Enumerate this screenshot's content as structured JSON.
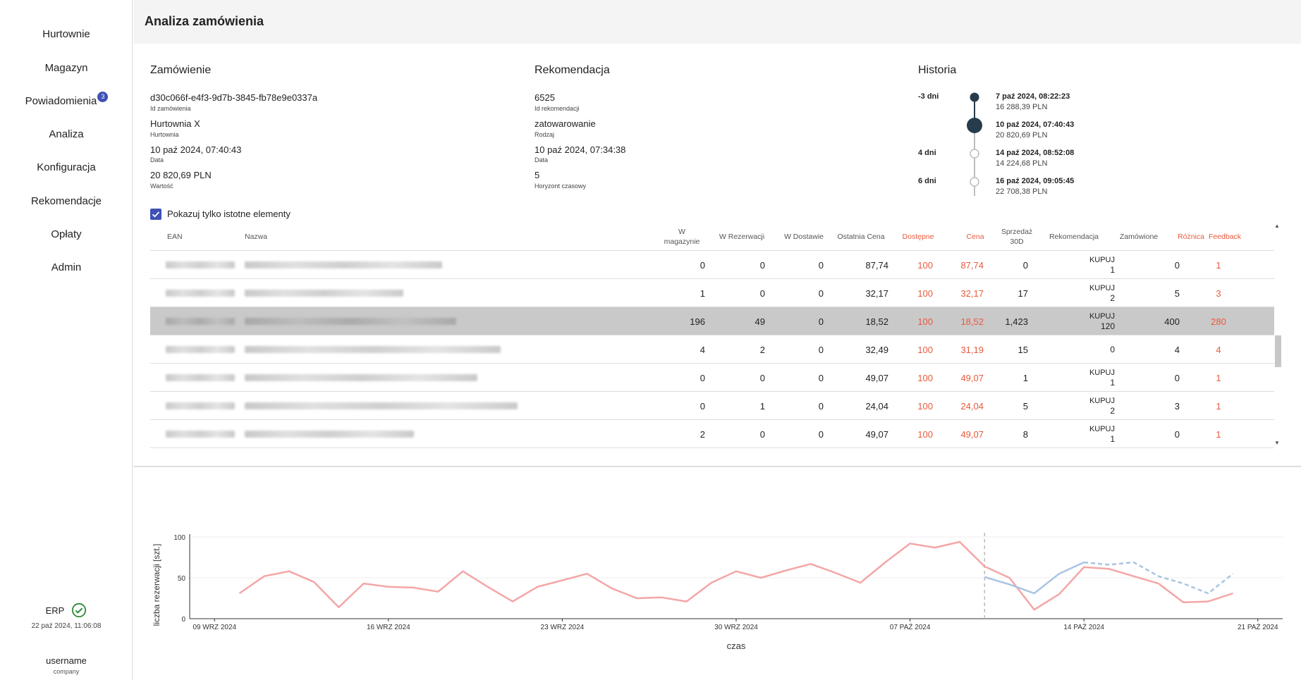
{
  "sidebar": {
    "items": [
      {
        "label": "Hurtownie"
      },
      {
        "label": "Magazyn"
      },
      {
        "label": "Powiadomienia",
        "badge": "3"
      },
      {
        "label": "Analiza"
      },
      {
        "label": "Konfiguracja"
      },
      {
        "label": "Rekomendacje"
      },
      {
        "label": "Opłaty"
      },
      {
        "label": "Admin"
      }
    ],
    "erp_label": "ERP",
    "erp_status_icon": "check-circle-icon",
    "erp_date": "22 paź 2024, 11:06:08",
    "username": "username",
    "company": "company"
  },
  "header": {
    "title": "Analiza zamówienia"
  },
  "order": {
    "title": "Zamówienie",
    "id_value": "d30c066f-e4f3-9d7b-3845-fb78e9e0337a",
    "id_label": "Id zamówienia",
    "wholesaler_value": "Hurtownia X",
    "wholesaler_label": "Hurtownia",
    "date_value": "10 paź 2024, 07:40:43",
    "date_label": "Data",
    "value_value": "20 820,69 PLN",
    "value_label": "Wartość"
  },
  "recommendation": {
    "title": "Rekomendacja",
    "id_value": "6525",
    "id_label": "Id rekomendacji",
    "type_value": "zatowarowanie",
    "type_label": "Rodzaj",
    "date_value": "10 paź 2024, 07:34:38",
    "date_label": "Data",
    "horizon_value": "5",
    "horizon_label": "Horyzont czasowy"
  },
  "history": {
    "title": "Historia",
    "entries": [
      {
        "rel": "-3 dni",
        "date": "7 paź 2024, 08:22:23",
        "value": "16 288,39 PLN"
      },
      {
        "rel": "",
        "date": "10 paź 2024, 07:40:43",
        "value": "20 820,69 PLN"
      },
      {
        "rel": "4 dni",
        "date": "14 paź 2024, 08:52:08",
        "value": "14 224,68 PLN"
      },
      {
        "rel": "6 dni",
        "date": "16 paź 2024, 09:05:45",
        "value": "22 708,38 PLN"
      }
    ]
  },
  "filter": {
    "checkbox_label": "Pokazuj tylko istotne elementy",
    "checked": true
  },
  "table": {
    "headers": {
      "ean": "EAN",
      "name": "Nazwa",
      "stock_1": "W",
      "stock_2": "magazynie",
      "reserved": "W Rezerwacji",
      "delivery": "W Dostawie",
      "last_price": "Ostatnia Cena",
      "available": "Dostępne",
      "price": "Cena",
      "sales_1": "Sprzedaż",
      "sales_2": "30D",
      "reco": "Rekomendacja",
      "ordered": "Zamówione",
      "diff": "Różnica",
      "feedback": "Feedback"
    },
    "rows": [
      {
        "stock": "0",
        "reserved": "0",
        "delivery": "0",
        "last_price": "87,74",
        "available": "100",
        "price": "87,74",
        "sales": "0",
        "reco_label": "KUPUJ",
        "reco_qty": "1",
        "ordered": "0",
        "diff": "1"
      },
      {
        "stock": "1",
        "reserved": "0",
        "delivery": "0",
        "last_price": "32,17",
        "available": "100",
        "price": "32,17",
        "sales": "17",
        "reco_label": "KUPUJ",
        "reco_qty": "2",
        "ordered": "5",
        "diff": "3"
      },
      {
        "stock": "196",
        "reserved": "49",
        "delivery": "0",
        "last_price": "18,52",
        "available": "100",
        "price": "18,52",
        "sales": "1,423",
        "reco_label": "KUPUJ",
        "reco_qty": "120",
        "ordered": "400",
        "diff": "280"
      },
      {
        "stock": "4",
        "reserved": "2",
        "delivery": "0",
        "last_price": "32,49",
        "available": "100",
        "price": "31,19",
        "sales": "15",
        "reco_label": "",
        "reco_qty": "0",
        "ordered": "4",
        "diff": "4"
      },
      {
        "stock": "0",
        "reserved": "0",
        "delivery": "0",
        "last_price": "49,07",
        "available": "100",
        "price": "49,07",
        "sales": "1",
        "reco_label": "KUPUJ",
        "reco_qty": "1",
        "ordered": "0",
        "diff": "1"
      },
      {
        "stock": "0",
        "reserved": "1",
        "delivery": "0",
        "last_price": "24,04",
        "available": "100",
        "price": "24,04",
        "sales": "5",
        "reco_label": "KUPUJ",
        "reco_qty": "2",
        "ordered": "3",
        "diff": "1"
      },
      {
        "stock": "2",
        "reserved": "0",
        "delivery": "0",
        "last_price": "49,07",
        "available": "100",
        "price": "49,07",
        "sales": "8",
        "reco_label": "KUPUJ",
        "reco_qty": "1",
        "ordered": "0",
        "diff": "1"
      }
    ]
  },
  "chart_data": {
    "type": "line",
    "xlabel": "czas",
    "ylabel": "liczba rezerwacji [szt.]",
    "ylim": [
      0,
      100
    ],
    "yticks": [
      "0",
      "50",
      "100"
    ],
    "xticks": [
      {
        "date": "2024-09-09",
        "label": "09 WRZ 2024"
      },
      {
        "date": "2024-09-16",
        "label": "16 WRZ 2024"
      },
      {
        "date": "2024-09-23",
        "label": "23 WRZ 2024"
      },
      {
        "date": "2024-09-30",
        "label": "30 WRZ 2024"
      },
      {
        "date": "2024-10-07",
        "label": "07 PAŹ 2024"
      },
      {
        "date": "2024-10-14",
        "label": "14 PAŹ 2024"
      },
      {
        "date": "2024-10-21",
        "label": "21 PAŹ 2024"
      }
    ],
    "xlim": [
      "2024-09-08",
      "2024-10-22"
    ],
    "vertical_marker": "2024-10-10",
    "colors": {
      "actual": "#f4a6a6",
      "forecast": "#a9c4e4"
    },
    "series": [
      {
        "style": "actual",
        "x": [
          "2024-09-10",
          "2024-09-11",
          "2024-09-12",
          "2024-09-13",
          "2024-09-14",
          "2024-09-15",
          "2024-09-16",
          "2024-09-17",
          "2024-09-18",
          "2024-09-19",
          "2024-09-20",
          "2024-09-21",
          "2024-09-22",
          "2024-09-23",
          "2024-09-24",
          "2024-09-25",
          "2024-09-26",
          "2024-09-27",
          "2024-09-28",
          "2024-09-29",
          "2024-09-30",
          "2024-10-01",
          "2024-10-02",
          "2024-10-03",
          "2024-10-04",
          "2024-10-05",
          "2024-10-06",
          "2024-10-07",
          "2024-10-08",
          "2024-10-09",
          "2024-10-10",
          "2024-10-11",
          "2024-10-12",
          "2024-10-13",
          "2024-10-14",
          "2024-10-15",
          "2024-10-16",
          "2024-10-17",
          "2024-10-18",
          "2024-10-19",
          "2024-10-20"
        ],
        "values": [
          31,
          52,
          58,
          45,
          14,
          43,
          39,
          38,
          33,
          58,
          39,
          21,
          39,
          47,
          55,
          37,
          25,
          26,
          21,
          44,
          58,
          50,
          59,
          67,
          56,
          44,
          69,
          92,
          87,
          94,
          64,
          50,
          11,
          30,
          63,
          61,
          52,
          43,
          20,
          21,
          31
        ]
      },
      {
        "style": "forecast-solid",
        "x": [
          "2024-10-10",
          "2024-10-11",
          "2024-10-12",
          "2024-10-13",
          "2024-10-14"
        ],
        "values": [
          51,
          42,
          31,
          55,
          69
        ]
      },
      {
        "style": "forecast-dashed",
        "x": [
          "2024-10-14",
          "2024-10-15",
          "2024-10-16",
          "2024-10-17",
          "2024-10-18",
          "2024-10-19",
          "2024-10-20"
        ],
        "values": [
          69,
          66,
          69,
          52,
          43,
          31,
          55
        ]
      }
    ]
  }
}
